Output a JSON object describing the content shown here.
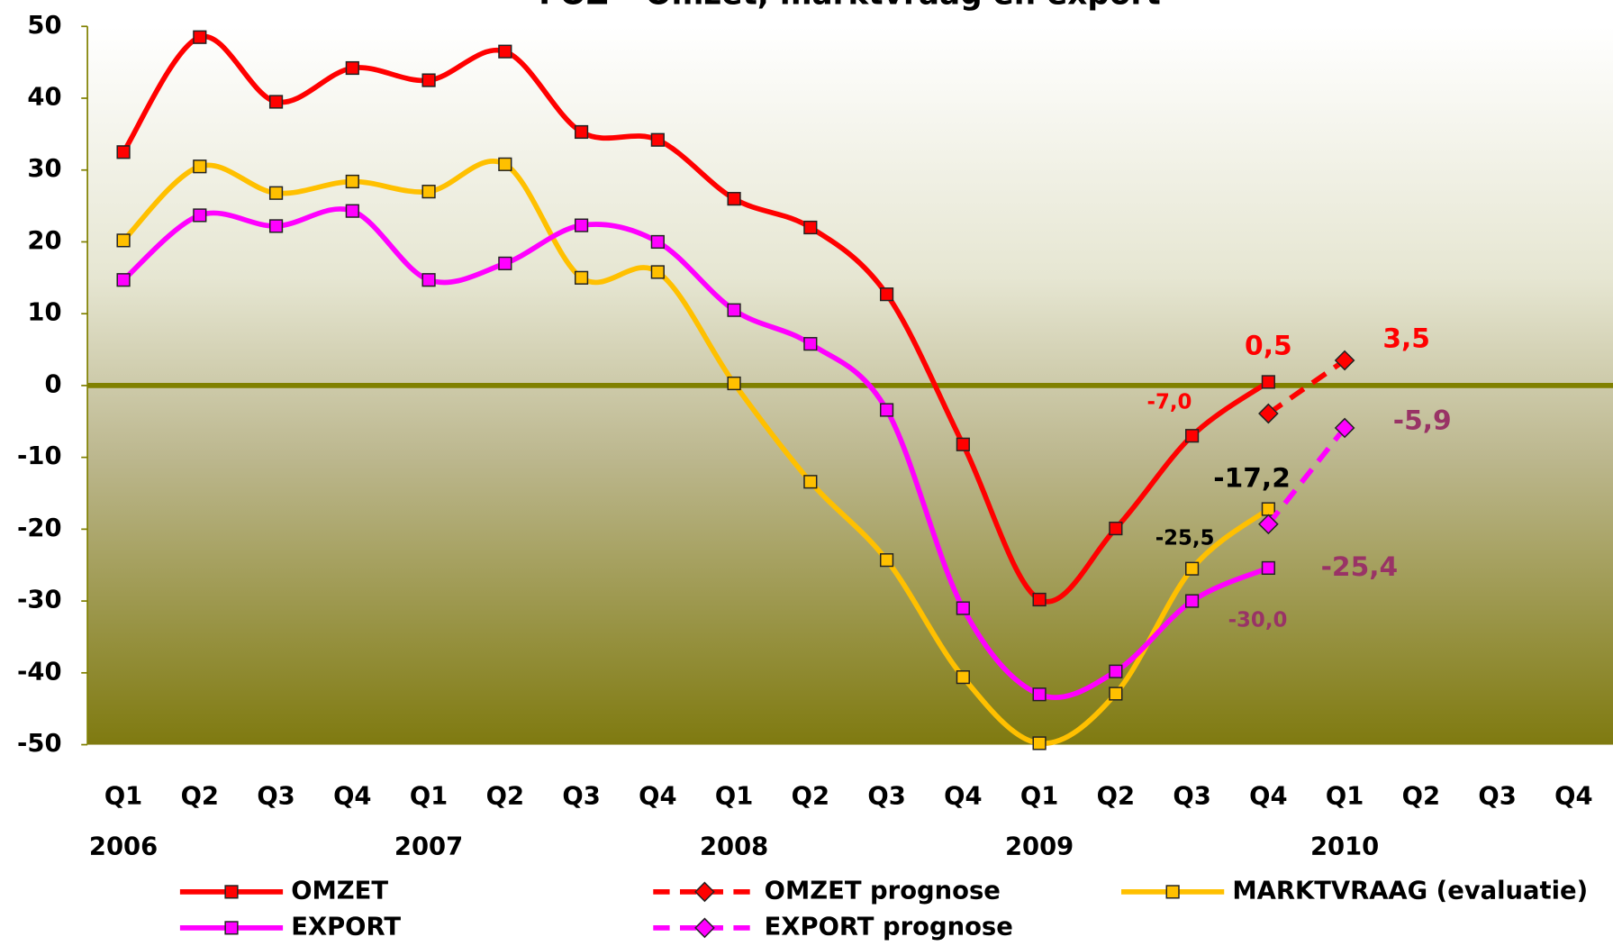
{
  "chart_data": {
    "type": "line",
    "title": "FOZ – Omzet, marktvraag en export",
    "categories": [
      "Q1",
      "Q2",
      "Q3",
      "Q4",
      "Q1",
      "Q2",
      "Q3",
      "Q4",
      "Q1",
      "Q2",
      "Q3",
      "Q4",
      "Q1",
      "Q2",
      "Q3",
      "Q4",
      "Q1",
      "Q2",
      "Q3",
      "Q4"
    ],
    "year_labels": [
      "2006",
      "2007",
      "2008",
      "2009",
      "2010"
    ],
    "ylim": [
      -50,
      50
    ],
    "yticks": [
      50,
      40,
      30,
      20,
      10,
      0,
      -10,
      -20,
      -30,
      -40,
      -50
    ],
    "series": [
      {
        "name": "OMZET",
        "color": "#ff0000",
        "marker": "square",
        "dashed": false,
        "values": [
          32.5,
          48.5,
          39.5,
          44.2,
          42.5,
          46.5,
          35.3,
          34.2,
          26,
          22,
          12.7,
          -8.2,
          -29.8,
          -19.9,
          -7.0,
          0.5,
          null,
          null,
          null,
          null
        ],
        "value_labels": [
          null,
          null,
          null,
          null,
          null,
          null,
          null,
          null,
          null,
          null,
          null,
          null,
          null,
          null,
          "-7,0",
          "0,5",
          null,
          null,
          null,
          null
        ],
        "label_color": "#ff0000"
      },
      {
        "name": "OMZET prognose",
        "color": "#ff0000",
        "marker": "diamond",
        "dashed": true,
        "values": [
          null,
          null,
          null,
          null,
          null,
          null,
          null,
          null,
          null,
          null,
          null,
          null,
          null,
          null,
          null,
          -3.9,
          3.5,
          null,
          null,
          null
        ],
        "value_labels": [
          null,
          null,
          null,
          null,
          null,
          null,
          null,
          null,
          null,
          null,
          null,
          null,
          null,
          null,
          null,
          null,
          "3,5",
          null,
          null,
          null
        ],
        "label_color": "#ff0000"
      },
      {
        "name": "MARKTVRAAG (evaluatie)",
        "color": "#ffc000",
        "marker": "square",
        "dashed": false,
        "values": [
          20.2,
          30.5,
          26.8,
          28.4,
          27,
          30.8,
          15,
          15.8,
          0.3,
          -13.4,
          -24.3,
          -40.6,
          -49.8,
          -42.9,
          -25.5,
          -17.2,
          null,
          null,
          null,
          null
        ],
        "value_labels": [
          null,
          null,
          null,
          null,
          null,
          null,
          null,
          null,
          null,
          null,
          null,
          null,
          null,
          null,
          "-25,5",
          "-17,2",
          null,
          null,
          null,
          null
        ],
        "label_color": "#000000"
      },
      {
        "name": "EXPORT",
        "color": "#ff00ff",
        "marker": "square",
        "dashed": false,
        "values": [
          14.7,
          23.7,
          22.2,
          24.3,
          14.7,
          17,
          22.3,
          20,
          10.5,
          5.8,
          -3.4,
          -31,
          -43,
          -39.8,
          -30,
          -25.4,
          null,
          null,
          null,
          null
        ],
        "value_labels": [
          null,
          null,
          null,
          null,
          null,
          null,
          null,
          null,
          null,
          null,
          null,
          null,
          null,
          null,
          "-30,0",
          "-25,4",
          null,
          null,
          null,
          null
        ],
        "label_color": "#993366"
      },
      {
        "name": "EXPORT prognose",
        "color": "#ff00ff",
        "marker": "diamond",
        "dashed": true,
        "values": [
          null,
          null,
          null,
          null,
          null,
          null,
          null,
          null,
          null,
          null,
          null,
          null,
          null,
          null,
          null,
          -19.3,
          -5.9,
          null,
          null,
          null
        ],
        "value_labels": [
          null,
          null,
          null,
          null,
          null,
          null,
          null,
          null,
          null,
          null,
          null,
          null,
          null,
          null,
          null,
          null,
          "-5,9",
          null,
          null,
          null
        ],
        "label_color": "#993366"
      }
    ]
  }
}
